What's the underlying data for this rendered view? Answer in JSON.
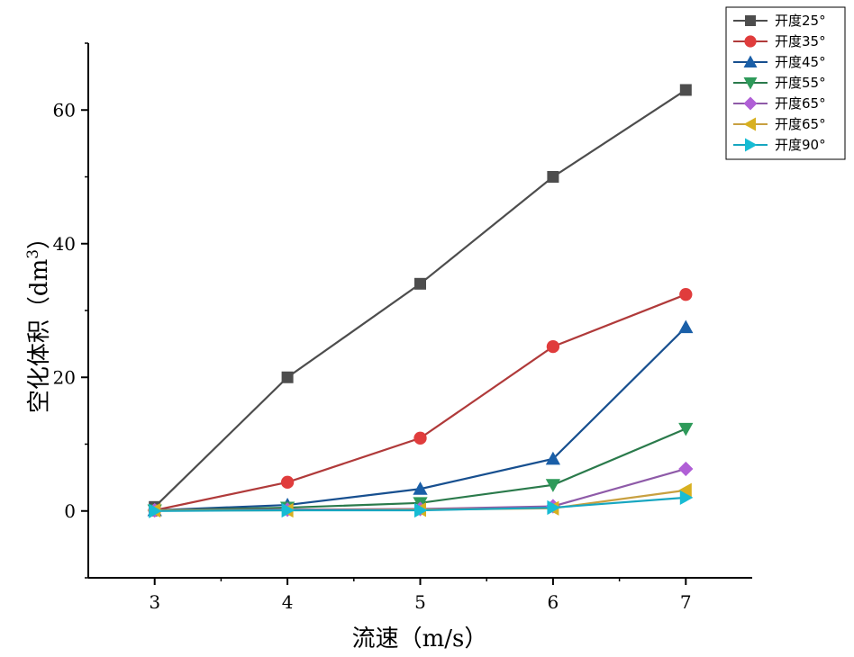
{
  "chart_data": {
    "type": "line",
    "title": "",
    "xlabel": "流速（m/s）",
    "ylabel": "空化体积（dm",
    "ylabel_sup": "3",
    "ylabel_close": "）",
    "xlim": [
      2.5,
      7.5
    ],
    "ylim": [
      -10,
      70
    ],
    "xticks": [
      3,
      4,
      5,
      6,
      7
    ],
    "yticks": [
      0,
      20,
      40,
      60
    ],
    "grid": false,
    "legend_position": "top-right",
    "x": [
      3,
      4,
      5,
      6,
      7
    ],
    "series": [
      {
        "name": "开度25°",
        "color": "#4d4d4d",
        "marker": "square",
        "values": [
          0.6,
          20.0,
          34.0,
          50.0,
          63.0
        ]
      },
      {
        "name": "开度35°",
        "color": "#e03c3c",
        "line_color": "#b03a3a",
        "marker": "circle",
        "values": [
          0.1,
          4.3,
          10.9,
          24.6,
          32.4
        ]
      },
      {
        "name": "开度45°",
        "color": "#1a5fa8",
        "line_color": "#174f8f",
        "marker": "triangle-up",
        "values": [
          0.1,
          0.9,
          3.3,
          7.8,
          27.5
        ]
      },
      {
        "name": "开度55°",
        "color": "#2e9a5a",
        "line_color": "#2a7a4b",
        "marker": "triangle-down",
        "values": [
          0.1,
          0.5,
          1.2,
          3.9,
          12.3
        ]
      },
      {
        "name": "开度65°",
        "color": "#b05fd6",
        "line_color": "#8e5aa8",
        "marker": "diamond",
        "values": [
          0.1,
          0.2,
          0.3,
          0.7,
          6.3
        ]
      },
      {
        "name": "开度65°",
        "color": "#d8b020",
        "line_color": "#c8a040",
        "marker": "triangle-left",
        "values": [
          0.1,
          0.1,
          0.2,
          0.4,
          3.1
        ]
      },
      {
        "name": "开度90°",
        "color": "#17bcd4",
        "line_color": "#17a6c0",
        "marker": "triangle-right",
        "values": [
          0.0,
          0.1,
          0.1,
          0.5,
          2.0
        ]
      }
    ]
  }
}
